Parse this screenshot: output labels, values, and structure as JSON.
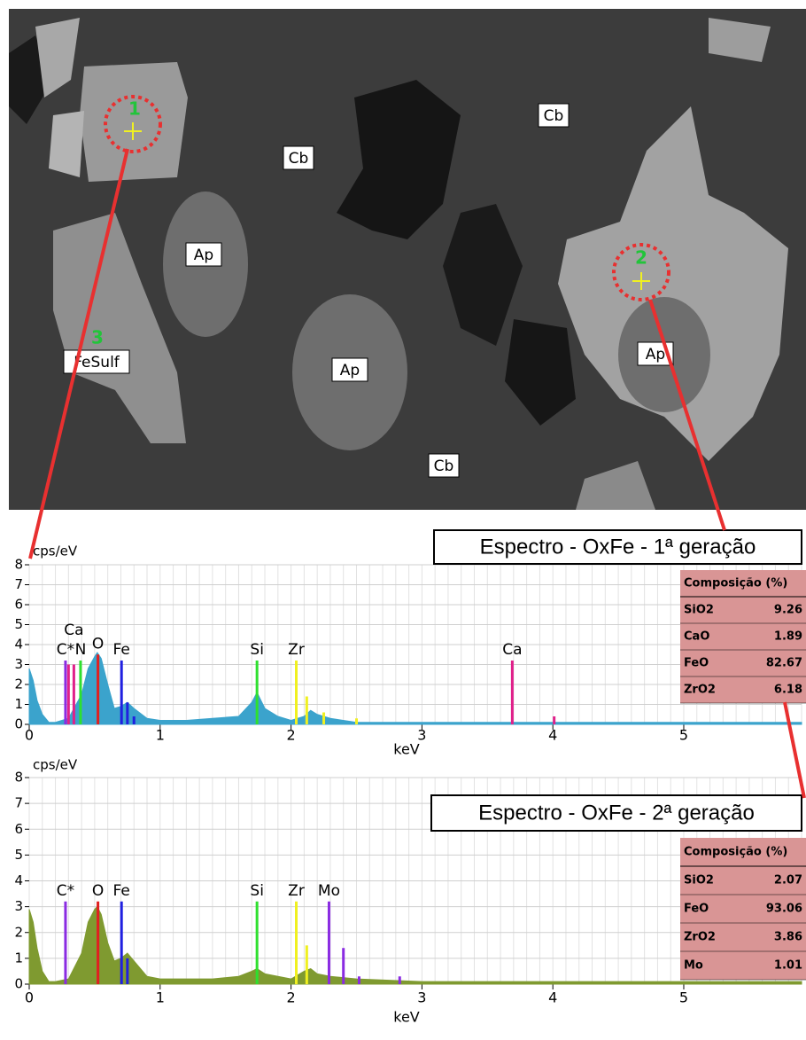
{
  "image": {
    "labels": [
      "Cb",
      "Cb",
      "Cb",
      "Ap",
      "Ap",
      "Ap",
      "FeSulf"
    ],
    "points": [
      "1",
      "2",
      "3"
    ]
  },
  "chart_data": [
    {
      "type": "area",
      "title": "Espectro - OxFe - 1ª geração",
      "y_label": "cps/eV",
      "x_label": "keV",
      "xlim": [
        0,
        5.9
      ],
      "xticks": [
        0,
        1,
        2,
        3,
        4,
        5
      ],
      "ylim": [
        0,
        8
      ],
      "yticks": [
        0,
        1,
        2,
        3,
        4,
        5,
        6,
        7,
        8
      ],
      "grid": true,
      "color": "#3ba3cc",
      "x": [
        0,
        0.03,
        0.06,
        0.1,
        0.15,
        0.2,
        0.3,
        0.4,
        0.45,
        0.5,
        0.52,
        0.55,
        0.6,
        0.65,
        0.7,
        0.75,
        0.8,
        0.9,
        1.0,
        1.2,
        1.4,
        1.6,
        1.7,
        1.74,
        1.8,
        1.9,
        2.0,
        2.1,
        2.15,
        2.2,
        2.3,
        2.5,
        3,
        4,
        5,
        5.9
      ],
      "values": [
        2.8,
        2.2,
        1.2,
        0.5,
        0.1,
        0.1,
        0.3,
        1.5,
        2.8,
        3.4,
        3.6,
        3.3,
        2.0,
        0.8,
        0.9,
        1.1,
        0.8,
        0.3,
        0.2,
        0.2,
        0.3,
        0.4,
        1.1,
        1.6,
        0.8,
        0.4,
        0.2,
        0.4,
        0.7,
        0.5,
        0.3,
        0.1,
        0.1,
        0.1,
        0.1,
        0.1
      ],
      "markers": [
        {
          "label": "C*",
          "x": 0.277,
          "height": 3.2,
          "color": "#8a2be2"
        },
        {
          "x": 0.3,
          "height": 3.0,
          "color": "#e0208a"
        },
        {
          "label": "Ca",
          "x": 0.341,
          "height": 3.0,
          "color": "#e0208a"
        },
        {
          "label": "N",
          "x": 0.392,
          "height": 3.2,
          "color": "#2ee02e"
        },
        {
          "label": "O",
          "x": 0.525,
          "height": 3.5,
          "color": "#e02020"
        },
        {
          "label": "Fe",
          "x": 0.705,
          "height": 3.2,
          "color": "#2020e0"
        },
        {
          "x": 0.75,
          "height": 1.1,
          "color": "#2020e0"
        },
        {
          "x": 0.8,
          "height": 0.4,
          "color": "#2020e0"
        },
        {
          "label": "Si",
          "x": 1.74,
          "height": 3.2,
          "color": "#2ee02e"
        },
        {
          "label": "Zr",
          "x": 2.04,
          "height": 3.2,
          "color": "#f0f020"
        },
        {
          "x": 2.12,
          "height": 1.4,
          "color": "#f0f020"
        },
        {
          "x": 2.25,
          "height": 0.6,
          "color": "#f0f020"
        },
        {
          "x": 2.5,
          "height": 0.3,
          "color": "#f0f020"
        },
        {
          "label": "Ca",
          "x": 3.69,
          "height": 3.2,
          "color": "#e0208a"
        },
        {
          "x": 4.01,
          "height": 0.4,
          "color": "#e0208a"
        }
      ],
      "table": {
        "header": "Composição (%)",
        "rows": [
          [
            "SiO2",
            9.26
          ],
          [
            "CaO",
            1.89
          ],
          [
            "FeO",
            82.67
          ],
          [
            "ZrO2",
            6.18
          ]
        ]
      }
    },
    {
      "type": "area",
      "title": "Espectro - OxFe - 2ª geração",
      "y_label": "cps/eV",
      "x_label": "keV",
      "xlim": [
        0,
        5.9
      ],
      "xticks": [
        0,
        1,
        2,
        3,
        4,
        5
      ],
      "ylim": [
        0,
        8
      ],
      "yticks": [
        0,
        1,
        2,
        3,
        4,
        5,
        6,
        7,
        8
      ],
      "grid": true,
      "color": "#7f9a30",
      "x": [
        0,
        0.03,
        0.06,
        0.1,
        0.15,
        0.2,
        0.3,
        0.4,
        0.45,
        0.5,
        0.52,
        0.55,
        0.6,
        0.65,
        0.7,
        0.75,
        0.8,
        0.9,
        1.0,
        1.2,
        1.4,
        1.6,
        1.7,
        1.74,
        1.8,
        1.9,
        2.0,
        2.1,
        2.15,
        2.2,
        2.3,
        2.5,
        3,
        4,
        5,
        5.9
      ],
      "values": [
        2.9,
        2.4,
        1.4,
        0.5,
        0.1,
        0.1,
        0.2,
        1.2,
        2.4,
        2.9,
        3.0,
        2.7,
        1.6,
        0.9,
        1.0,
        1.2,
        0.9,
        0.3,
        0.2,
        0.2,
        0.2,
        0.3,
        0.5,
        0.6,
        0.4,
        0.3,
        0.2,
        0.5,
        0.6,
        0.4,
        0.3,
        0.2,
        0.1,
        0.1,
        0.1,
        0.1
      ],
      "markers": [
        {
          "label": "C*",
          "x": 0.277,
          "height": 3.2,
          "color": "#8a2be2"
        },
        {
          "label": "O",
          "x": 0.525,
          "height": 3.2,
          "color": "#e02020"
        },
        {
          "label": "Fe",
          "x": 0.705,
          "height": 3.2,
          "color": "#2020e0"
        },
        {
          "x": 0.75,
          "height": 1.0,
          "color": "#2020e0"
        },
        {
          "label": "Si",
          "x": 1.74,
          "height": 3.2,
          "color": "#2ee02e"
        },
        {
          "label": "Zr",
          "x": 2.04,
          "height": 3.2,
          "color": "#f0f020"
        },
        {
          "x": 2.12,
          "height": 1.5,
          "color": "#f0f020"
        },
        {
          "label": "Mo",
          "x": 2.29,
          "height": 3.2,
          "color": "#8a2be2"
        },
        {
          "x": 2.4,
          "height": 1.4,
          "color": "#8a2be2"
        },
        {
          "x": 2.52,
          "height": 0.3,
          "color": "#8a2be2"
        },
        {
          "x": 2.83,
          "height": 0.3,
          "color": "#8a2be2"
        }
      ],
      "table": {
        "header": "Composição (%)",
        "rows": [
          [
            "SiO2",
            2.07
          ],
          [
            "FeO",
            93.06
          ],
          [
            "ZrO2",
            3.86
          ],
          [
            "Mo",
            1.01
          ]
        ]
      }
    }
  ]
}
